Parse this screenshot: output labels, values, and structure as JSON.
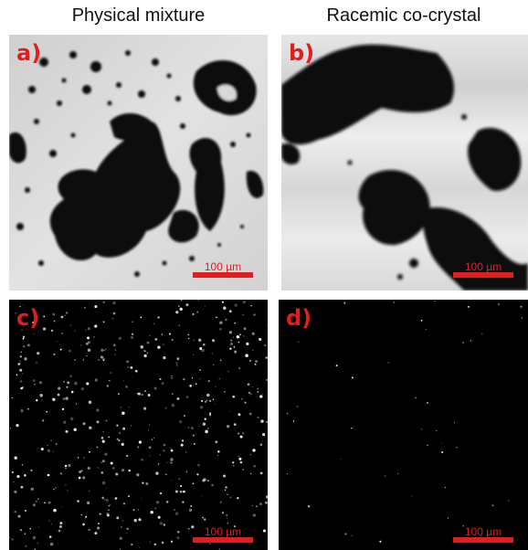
{
  "columns": {
    "left_title": "Physical mixture",
    "right_title": "Racemic co-crystal"
  },
  "panels": [
    {
      "letter": "a)",
      "scale_label": "100 µm",
      "kind": "bright-field"
    },
    {
      "letter": "b)",
      "scale_label": "100 µm",
      "kind": "bright-field"
    },
    {
      "letter": "c)",
      "scale_label": "100 µm",
      "kind": "polarized-dark"
    },
    {
      "letter": "d)",
      "scale_label": "100 µm",
      "kind": "polarized-dark"
    }
  ],
  "colors": {
    "label_red": "#e01e1e",
    "bright_background": "#d9d9d9",
    "particle": "#0a0a0a",
    "dark_background": "#000000",
    "speckle": "#ffffff"
  }
}
